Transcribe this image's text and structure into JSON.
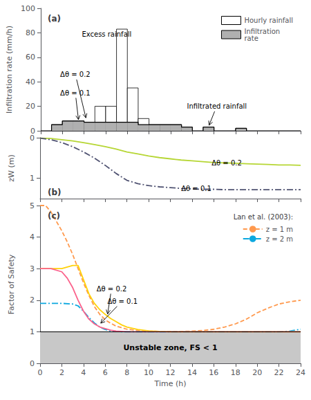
{
  "chart_data": [
    {
      "type": "bar",
      "title": "(a)",
      "ylabel": "Infiltration rate (mm/h)",
      "bins": [
        0,
        1,
        2,
        3,
        4,
        5,
        6,
        7,
        8,
        9,
        10,
        11,
        12,
        13,
        14,
        15,
        16,
        17,
        18,
        19,
        20,
        21,
        22,
        23,
        24
      ],
      "series": [
        {
          "name": "Hourly rainfall",
          "color": "#ffffff",
          "values": [
            0,
            5,
            8,
            8,
            7,
            20,
            20,
            83,
            35,
            10,
            5,
            5,
            5,
            3,
            0,
            3,
            0,
            0,
            2,
            0,
            0,
            0,
            0,
            0
          ]
        },
        {
          "name": "Infiltration\nrate",
          "color": "#b0b0b0",
          "type": "area",
          "values": [
            0,
            5,
            8,
            8,
            7,
            7,
            7,
            7,
            7,
            5,
            5,
            5,
            5,
            3,
            0,
            3,
            0,
            0,
            2,
            0,
            0,
            0,
            0,
            0
          ]
        }
      ],
      "xlim": [
        0,
        24
      ],
      "xticks": [
        0,
        2,
        4,
        6,
        8,
        10,
        12,
        14,
        16,
        18,
        20,
        22,
        24
      ],
      "ylim": [
        0,
        100
      ],
      "yticks": [
        0,
        20,
        40,
        60,
        80,
        100
      ],
      "grid": false,
      "legend": "upper right",
      "tick_labels": "y",
      "annotations": [
        {
          "text": "Δθ = 0.2",
          "x": 1.8,
          "y": 43,
          "xy": [
            4.2,
            9.5
          ]
        },
        {
          "text": "Δθ = 0.1",
          "x": 1.8,
          "y": 28,
          "xy": [
            3.5,
            8.0
          ]
        },
        {
          "text": "Excess rainfall",
          "x": 3.8,
          "y": 76,
          "xy": [
            7.5,
            82
          ]
        },
        {
          "text": "Infiltrated rainfall",
          "x": 13.5,
          "y": 17,
          "xy": [
            15.5,
            3.5
          ]
        }
      ]
    },
    {
      "type": "line",
      "title": "(b)",
      "ylabel": "zW (m)",
      "series": [
        {
          "line_style": "solid",
          "x": [
            0,
            1,
            2,
            3,
            4,
            5,
            6,
            7,
            8,
            9,
            10,
            11,
            12,
            13,
            14,
            15,
            16,
            17,
            18,
            19,
            20,
            21,
            22,
            23,
            24
          ],
          "values": [
            0.01,
            0.02,
            0.05,
            0.08,
            0.12,
            0.17,
            0.22,
            0.28,
            0.35,
            0.4,
            0.45,
            0.49,
            0.52,
            0.55,
            0.57,
            0.59,
            0.61,
            0.62,
            0.63,
            0.64,
            0.65,
            0.66,
            0.67,
            0.67,
            0.68
          ]
        },
        {
          "line_style": "dashdot",
          "x": [
            0,
            1,
            2,
            3,
            4,
            5,
            6,
            7,
            8,
            9,
            10,
            11,
            12,
            13,
            14,
            15,
            16,
            17,
            18,
            19,
            20,
            21,
            22,
            23,
            24
          ],
          "values": [
            0.01,
            0.05,
            0.12,
            0.22,
            0.35,
            0.5,
            0.68,
            0.88,
            1.05,
            1.13,
            1.18,
            1.21,
            1.23,
            1.25,
            1.26,
            1.27,
            1.27,
            1.28,
            1.28,
            1.28,
            1.28,
            1.28,
            1.28,
            1.28,
            1.28
          ]
        }
      ],
      "xlim": [
        0,
        24
      ],
      "xticks": [
        0,
        2,
        4,
        6,
        8,
        10,
        12,
        14,
        16,
        18,
        20,
        22,
        24
      ],
      "ylim": [
        1.5,
        0
      ],
      "yticks": [
        0,
        1
      ],
      "grid": false,
      "tick_labels": "y",
      "annotations": [
        {
          "text": "Δθ = 0.2",
          "x": 15.8,
          "y": 0.62
        },
        {
          "text": "Δθ = 0.1",
          "x": 13.0,
          "y": 1.26
        }
      ]
    },
    {
      "type": "line",
      "title": "(c)",
      "xlabel": "Time (h)",
      "ylabel": "Factor of Safety",
      "series": [
        {
          "name": "z = 1 m",
          "line_style": "dashed",
          "x": [
            0,
            0.5,
            1,
            1.5,
            2,
            2.5,
            3,
            3.5,
            4,
            4.5,
            5,
            5.5,
            6,
            6.5,
            7,
            7.5,
            8,
            9,
            10,
            11,
            12,
            13,
            14,
            15,
            16,
            17,
            18,
            19,
            20,
            21,
            22,
            23,
            24
          ],
          "values": [
            5.0,
            5.0,
            4.8,
            4.5,
            4.2,
            3.85,
            3.45,
            3.0,
            2.55,
            2.15,
            1.8,
            1.55,
            1.38,
            1.27,
            1.18,
            1.13,
            1.08,
            1.04,
            1.02,
            1.01,
            1.01,
            1.01,
            1.02,
            1.04,
            1.08,
            1.15,
            1.25,
            1.4,
            1.6,
            1.75,
            1.88,
            1.95,
            2.0
          ]
        },
        {
          "name": "z = 2 m",
          "line_style": "dashdot",
          "x": [
            0,
            1,
            2,
            3,
            3.5,
            4,
            4.5,
            5,
            5.5,
            6,
            6.5,
            7,
            7.5,
            8,
            9,
            10,
            11,
            12,
            13,
            14,
            15,
            16,
            17,
            18,
            19,
            20,
            21,
            22,
            23,
            24
          ],
          "values": [
            1.9,
            1.9,
            1.9,
            1.88,
            1.82,
            1.65,
            1.45,
            1.28,
            1.15,
            1.07,
            1.03,
            1.01,
            1.0,
            1.0,
            1.0,
            1.0,
            1.0,
            1.0,
            1.0,
            1.0,
            1.0,
            1.0,
            1.0,
            1.0,
            1.0,
            1.0,
            1.0,
            1.0,
            1.02,
            1.08
          ]
        },
        {
          "line_style": "solid",
          "x": [
            0,
            1,
            2,
            3,
            3.5,
            4,
            4.5,
            5,
            5.5,
            6,
            6.5,
            7,
            7.5,
            8,
            9,
            10,
            11,
            12,
            13,
            14,
            15,
            16,
            17,
            18,
            19,
            20,
            21,
            22,
            23,
            24
          ],
          "values": [
            3.0,
            3.0,
            3.0,
            3.1,
            3.1,
            2.65,
            2.2,
            1.9,
            1.7,
            1.55,
            1.42,
            1.32,
            1.22,
            1.15,
            1.07,
            1.03,
            1.01,
            1.0,
            1.0,
            1.0,
            1.0,
            1.0,
            1.0,
            1.0,
            1.0,
            1.0,
            1.0,
            1.0,
            1.0,
            1.0
          ]
        },
        {
          "line_style": "solid",
          "x": [
            0,
            1,
            2,
            2.5,
            3,
            3.5,
            4,
            4.5,
            5,
            5.5,
            6,
            6.5,
            7,
            7.5,
            8,
            9,
            10,
            11,
            12,
            13,
            14,
            15,
            16,
            17,
            18,
            19,
            20,
            21,
            22,
            23,
            24
          ],
          "values": [
            3.0,
            3.0,
            2.9,
            2.7,
            2.4,
            2.0,
            1.65,
            1.4,
            1.25,
            1.15,
            1.1,
            1.05,
            1.02,
            1.01,
            1.0,
            1.0,
            1.0,
            1.0,
            1.0,
            1.0,
            1.0,
            1.0,
            1.0,
            1.0,
            1.0,
            1.0,
            1.0,
            1.0,
            1.0,
            1.0,
            1.0
          ]
        }
      ],
      "bands": [
        {
          "from": 0,
          "to": 1,
          "color": "#c8c8c8",
          "label": "Unstable zone, FS < 1"
        }
      ],
      "xlim": [
        0,
        24
      ],
      "xticks": [
        0,
        2,
        4,
        6,
        8,
        10,
        12,
        14,
        16,
        18,
        20,
        22,
        24
      ],
      "ylim": [
        0,
        5
      ],
      "yticks": [
        0,
        1,
        2,
        3,
        4,
        5
      ],
      "grid": false,
      "legend": "upper right",
      "legend_title": "Lan et al. (2003):",
      "annotations": [
        {
          "text": "Δθ = 0.2",
          "x": 5.2,
          "y": 2.25,
          "xy": [
            6.2,
            1.52
          ]
        },
        {
          "text": "Δθ = 0.1",
          "x": 6.2,
          "y": 1.85,
          "xy": [
            5.5,
            1.24
          ]
        }
      ]
    }
  ]
}
